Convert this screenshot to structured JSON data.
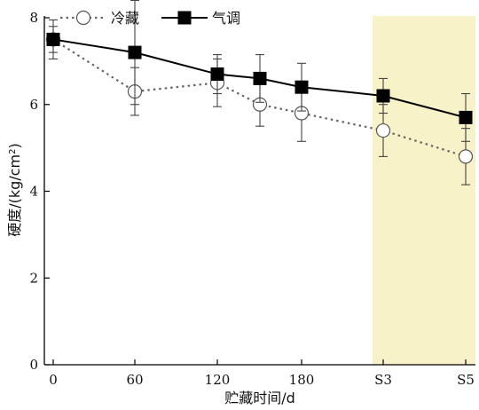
{
  "chart_data": {
    "type": "line",
    "xlabel": "贮藏时间/d",
    "ylabel": "硬度/(kg/cm²)",
    "ylabel_parts": {
      "main": "硬度/(kg/cm",
      "sup": "2",
      "tail": ")"
    },
    "ylim": [
      0,
      8
    ],
    "yticks": [
      0,
      2,
      4,
      6,
      8
    ],
    "categories": [
      "0",
      "60",
      "120",
      "150",
      "180",
      "S3",
      "S5"
    ],
    "x_tick_labels": [
      "0",
      "60",
      "120",
      "180",
      "S3",
      "S5"
    ],
    "highlight_region": {
      "from": "S3",
      "to": "S5",
      "color": "#f8f2c8"
    },
    "series": [
      {
        "name": "冷藏",
        "style": "dotted",
        "marker": "open-circle",
        "color": "#666666",
        "values": [
          7.5,
          6.3,
          6.5,
          6.0,
          5.8,
          5.4,
          4.8
        ],
        "errors": [
          0.45,
          0.55,
          0.55,
          0.5,
          0.65,
          0.6,
          0.65
        ]
      },
      {
        "name": "气调",
        "style": "solid",
        "marker": "filled-square",
        "color": "#000000",
        "values": [
          7.5,
          7.2,
          6.7,
          6.6,
          6.4,
          6.2,
          5.7
        ],
        "errors": [
          0.3,
          1.2,
          0.45,
          0.55,
          0.55,
          0.4,
          0.55
        ]
      }
    ],
    "grid": false,
    "legend_position": "top-left"
  }
}
